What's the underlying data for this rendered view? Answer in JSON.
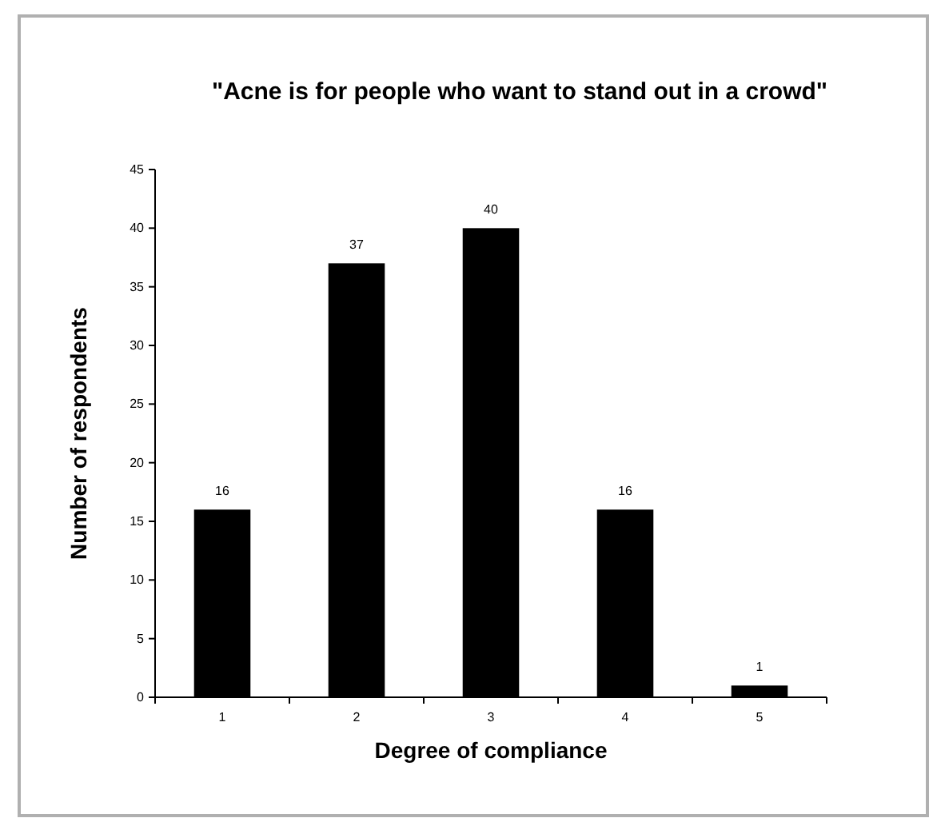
{
  "chart_data": {
    "type": "bar",
    "title": "\"Acne is for people who want to stand out in a crowd\"",
    "xlabel": "Degree of compliance",
    "ylabel": "Number of respondents",
    "categories": [
      "1",
      "2",
      "3",
      "4",
      "5"
    ],
    "values": [
      16,
      37,
      40,
      16,
      1
    ],
    "color": "#000000",
    "ylim": [
      0,
      45
    ],
    "yticks": [
      0,
      5,
      10,
      15,
      20,
      25,
      30,
      35,
      40,
      45
    ],
    "data_labels": true,
    "grid": false
  }
}
